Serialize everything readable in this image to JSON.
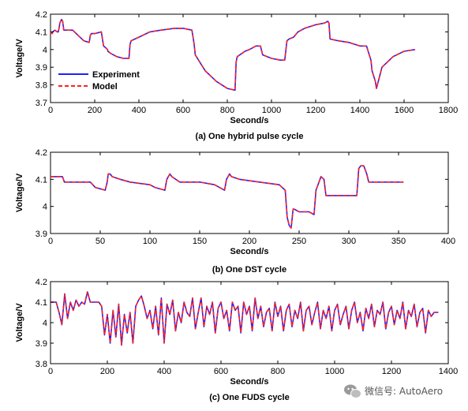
{
  "colors": {
    "experiment": "#1f1fff",
    "model": "#ff2020"
  },
  "watermark": {
    "text": "微信号: AutoAero",
    "icon": "wechat-icon"
  },
  "chart_data": [
    {
      "type": "line",
      "caption": "(a) One hybrid pulse cycle",
      "xlabel": "Second/s",
      "ylabel": "Voltage/V",
      "xlim": [
        0,
        1800
      ],
      "ylim": [
        3.7,
        4.2
      ],
      "xticks": [
        0,
        200,
        400,
        600,
        800,
        1000,
        1200,
        1400,
        1600,
        1800
      ],
      "yticks": [
        3.7,
        3.8,
        3.9,
        4.0,
        4.1,
        4.2
      ],
      "legend": {
        "placement": "bottom-left",
        "entries": [
          "Experiment",
          "Model"
        ]
      },
      "grid": false,
      "x": [
        0,
        8,
        10,
        20,
        30,
        35,
        40,
        42,
        50,
        55,
        60,
        62,
        70,
        100,
        150,
        175,
        180,
        185,
        200,
        230,
        240,
        250,
        258,
        260,
        270,
        300,
        330,
        355,
        360,
        365,
        400,
        450,
        500,
        560,
        600,
        640,
        650,
        655,
        700,
        750,
        800,
        835,
        840,
        845,
        880,
        900,
        930,
        950,
        960,
        980,
        1000,
        1040,
        1060,
        1070,
        1080,
        1100,
        1120,
        1150,
        1200,
        1240,
        1255,
        1260,
        1265,
        1300,
        1350,
        1400,
        1430,
        1450,
        1455,
        1465,
        1470,
        1475,
        1500,
        1550,
        1600,
        1650
      ],
      "series": [
        {
          "name": "Experiment",
          "values": [
            4.1,
            4.09,
            4.1,
            4.11,
            4.1,
            4.1,
            4.13,
            4.15,
            4.17,
            4.16,
            4.11,
            4.11,
            4.11,
            4.11,
            4.05,
            4.04,
            4.08,
            4.09,
            4.09,
            4.1,
            4.02,
            4.01,
            4.0,
            3.99,
            3.98,
            3.96,
            3.95,
            3.95,
            4.03,
            4.05,
            4.07,
            4.1,
            4.11,
            4.12,
            4.12,
            4.11,
            4.03,
            3.97,
            3.88,
            3.82,
            3.78,
            3.77,
            3.93,
            3.96,
            3.99,
            4.0,
            4.02,
            4.02,
            3.97,
            3.96,
            3.95,
            3.94,
            3.94,
            4.05,
            4.06,
            4.07,
            4.1,
            4.12,
            4.14,
            4.15,
            4.16,
            4.15,
            4.06,
            4.05,
            4.04,
            4.02,
            4.02,
            3.94,
            3.88,
            3.84,
            3.82,
            3.78,
            3.9,
            3.96,
            3.99,
            4.0
          ]
        },
        {
          "name": "Model",
          "values": [
            4.1,
            4.09,
            4.1,
            4.11,
            4.1,
            4.1,
            4.13,
            4.15,
            4.17,
            4.16,
            4.11,
            4.11,
            4.11,
            4.11,
            4.05,
            4.04,
            4.08,
            4.09,
            4.09,
            4.1,
            4.02,
            4.01,
            4.0,
            3.99,
            3.98,
            3.96,
            3.95,
            3.95,
            4.03,
            4.05,
            4.07,
            4.1,
            4.11,
            4.12,
            4.12,
            4.11,
            4.03,
            3.97,
            3.88,
            3.82,
            3.78,
            3.77,
            3.93,
            3.96,
            3.99,
            4.0,
            4.02,
            4.02,
            3.97,
            3.96,
            3.95,
            3.94,
            3.94,
            4.05,
            4.06,
            4.07,
            4.1,
            4.12,
            4.14,
            4.15,
            4.16,
            4.15,
            4.06,
            4.05,
            4.04,
            4.02,
            4.02,
            3.94,
            3.88,
            3.84,
            3.82,
            3.78,
            3.9,
            3.96,
            3.99,
            4.0
          ]
        }
      ]
    },
    {
      "type": "line",
      "caption": "(b) One DST cycle",
      "xlabel": "Second/s",
      "ylabel": "Voltage/V",
      "xlim": [
        0,
        400
      ],
      "ylim": [
        3.9,
        4.2
      ],
      "xticks": [
        0,
        50,
        100,
        150,
        200,
        250,
        300,
        350,
        400
      ],
      "yticks": [
        3.9,
        4.0,
        4.1,
        4.2
      ],
      "grid": false,
      "x": [
        0,
        12,
        14,
        40,
        45,
        55,
        57,
        58,
        60,
        62,
        70,
        80,
        100,
        105,
        115,
        117,
        120,
        122,
        130,
        150,
        165,
        175,
        177,
        180,
        182,
        190,
        210,
        230,
        236,
        238,
        240,
        242,
        244,
        245,
        250,
        260,
        265,
        267,
        270,
        272,
        275,
        277,
        280,
        300,
        308,
        310,
        312,
        315,
        318,
        320,
        330,
        340,
        355
      ],
      "series": [
        {
          "name": "Experiment",
          "values": [
            4.11,
            4.11,
            4.09,
            4.09,
            4.07,
            4.06,
            4.09,
            4.12,
            4.12,
            4.11,
            4.1,
            4.09,
            4.08,
            4.07,
            4.06,
            4.1,
            4.12,
            4.11,
            4.09,
            4.09,
            4.08,
            4.06,
            4.1,
            4.12,
            4.11,
            4.1,
            4.09,
            4.08,
            4.06,
            3.96,
            3.93,
            3.92,
            3.99,
            3.99,
            3.98,
            3.98,
            3.97,
            4.06,
            4.09,
            4.11,
            4.1,
            4.04,
            4.04,
            4.04,
            4.04,
            4.14,
            4.15,
            4.15,
            4.12,
            4.09,
            4.09,
            4.09,
            4.09
          ]
        },
        {
          "name": "Model",
          "values": [
            4.11,
            4.11,
            4.09,
            4.09,
            4.07,
            4.06,
            4.09,
            4.12,
            4.12,
            4.11,
            4.1,
            4.09,
            4.08,
            4.07,
            4.06,
            4.1,
            4.12,
            4.11,
            4.09,
            4.09,
            4.08,
            4.06,
            4.1,
            4.12,
            4.11,
            4.1,
            4.09,
            4.08,
            4.06,
            3.96,
            3.93,
            3.92,
            3.99,
            3.99,
            3.98,
            3.98,
            3.97,
            4.06,
            4.09,
            4.11,
            4.1,
            4.04,
            4.04,
            4.04,
            4.04,
            4.14,
            4.15,
            4.15,
            4.12,
            4.09,
            4.09,
            4.09,
            4.09
          ]
        }
      ]
    },
    {
      "type": "line",
      "caption": "(c) One FUDS cycle",
      "xlabel": "Second/s",
      "ylabel": "Voltage/V",
      "xlim": [
        0,
        1400
      ],
      "ylim": [
        3.8,
        4.2
      ],
      "xticks": [
        0,
        200,
        400,
        600,
        800,
        1000,
        1200,
        1400
      ],
      "yticks": [
        3.8,
        3.9,
        4.0,
        4.1,
        4.2
      ],
      "grid": false,
      "x": [
        0,
        20,
        30,
        40,
        50,
        60,
        70,
        80,
        90,
        100,
        110,
        120,
        130,
        140,
        150,
        160,
        170,
        180,
        190,
        200,
        210,
        220,
        230,
        240,
        250,
        260,
        270,
        280,
        290,
        300,
        310,
        320,
        330,
        340,
        350,
        360,
        370,
        380,
        390,
        400,
        410,
        420,
        430,
        440,
        450,
        460,
        470,
        480,
        490,
        500,
        510,
        520,
        530,
        540,
        550,
        560,
        570,
        580,
        590,
        600,
        610,
        620,
        630,
        640,
        650,
        660,
        670,
        680,
        690,
        700,
        710,
        720,
        730,
        740,
        750,
        760,
        770,
        780,
        790,
        800,
        810,
        820,
        830,
        840,
        850,
        860,
        870,
        880,
        890,
        900,
        910,
        920,
        930,
        940,
        950,
        960,
        970,
        980,
        990,
        1000,
        1010,
        1020,
        1030,
        1040,
        1050,
        1060,
        1070,
        1080,
        1090,
        1100,
        1110,
        1120,
        1130,
        1140,
        1150,
        1160,
        1170,
        1180,
        1190,
        1200,
        1210,
        1220,
        1230,
        1240,
        1250,
        1260,
        1270,
        1280,
        1290,
        1300,
        1310,
        1320,
        1330,
        1340,
        1350,
        1365
      ],
      "series": [
        {
          "name": "Experiment",
          "values": [
            4.1,
            4.1,
            4.05,
            3.99,
            4.14,
            4.02,
            4.1,
            4.06,
            4.11,
            4.08,
            4.1,
            4.09,
            4.15,
            4.1,
            4.1,
            4.1,
            4.1,
            4.08,
            3.94,
            4.04,
            3.9,
            4.06,
            3.93,
            4.09,
            3.89,
            4.04,
            3.95,
            4.05,
            3.9,
            4.08,
            4.11,
            4.13,
            4.08,
            4.02,
            4.06,
            3.97,
            4.08,
            3.94,
            4.12,
            3.9,
            4.09,
            4.04,
            4.11,
            3.96,
            4.05,
            4.0,
            4.1,
            4.05,
            4.03,
            4.12,
            3.97,
            4.05,
            4.12,
            3.98,
            4.08,
            4.04,
            4.1,
            3.95,
            4.07,
            4.1,
            4.02,
            4.06,
            3.96,
            4.1,
            4.06,
            4.08,
            3.95,
            4.1,
            4.04,
            4.08,
            3.96,
            4.12,
            4.02,
            4.08,
            3.98,
            4.05,
            4.07,
            3.96,
            4.1,
            4.03,
            4.08,
            3.96,
            4.06,
            4.09,
            3.98,
            4.06,
            4.02,
            4.1,
            3.96,
            4.06,
            4.08,
            3.99,
            4.05,
            4.1,
            3.97,
            4.06,
            4.02,
            4.08,
            3.96,
            4.06,
            4.09,
            3.99,
            4.04,
            4.08,
            3.97,
            4.06,
            4.1,
            4.0,
            4.05,
            3.96,
            4.07,
            4.02,
            4.09,
            3.98,
            4.06,
            4.04,
            4.1,
            3.97,
            4.05,
            4.08,
            3.99,
            4.06,
            4.02,
            4.1,
            3.97,
            4.06,
            4.03,
            4.09,
            3.98,
            4.05,
            4.07,
            3.95,
            4.06,
            4.03,
            4.05,
            4.05
          ]
        },
        {
          "name": "Model",
          "values": [
            4.1,
            4.1,
            4.05,
            3.99,
            4.14,
            4.02,
            4.1,
            4.06,
            4.11,
            4.08,
            4.1,
            4.09,
            4.15,
            4.1,
            4.1,
            4.1,
            4.1,
            4.08,
            3.94,
            4.04,
            3.9,
            4.06,
            3.93,
            4.09,
            3.89,
            4.04,
            3.95,
            4.05,
            3.9,
            4.08,
            4.11,
            4.13,
            4.08,
            4.02,
            4.06,
            3.97,
            4.08,
            3.94,
            4.12,
            3.9,
            4.09,
            4.04,
            4.11,
            3.96,
            4.05,
            4.0,
            4.1,
            4.05,
            4.03,
            4.12,
            3.97,
            4.05,
            4.12,
            3.98,
            4.08,
            4.04,
            4.1,
            3.95,
            4.07,
            4.1,
            4.02,
            4.06,
            3.96,
            4.1,
            4.06,
            4.08,
            3.95,
            4.1,
            4.04,
            4.08,
            3.96,
            4.12,
            4.02,
            4.08,
            3.98,
            4.05,
            4.07,
            3.96,
            4.1,
            4.03,
            4.08,
            3.96,
            4.06,
            4.09,
            3.98,
            4.06,
            4.02,
            4.1,
            3.96,
            4.06,
            4.08,
            3.99,
            4.05,
            4.1,
            3.97,
            4.06,
            4.02,
            4.08,
            3.96,
            4.06,
            4.09,
            3.99,
            4.04,
            4.08,
            3.97,
            4.06,
            4.1,
            4.0,
            4.05,
            3.96,
            4.07,
            4.02,
            4.09,
            3.98,
            4.06,
            4.04,
            4.1,
            3.97,
            4.05,
            4.08,
            3.99,
            4.06,
            4.02,
            4.1,
            3.97,
            4.06,
            4.03,
            4.09,
            3.98,
            4.05,
            4.07,
            3.95,
            4.06,
            4.03,
            4.05,
            4.05
          ]
        }
      ]
    }
  ]
}
